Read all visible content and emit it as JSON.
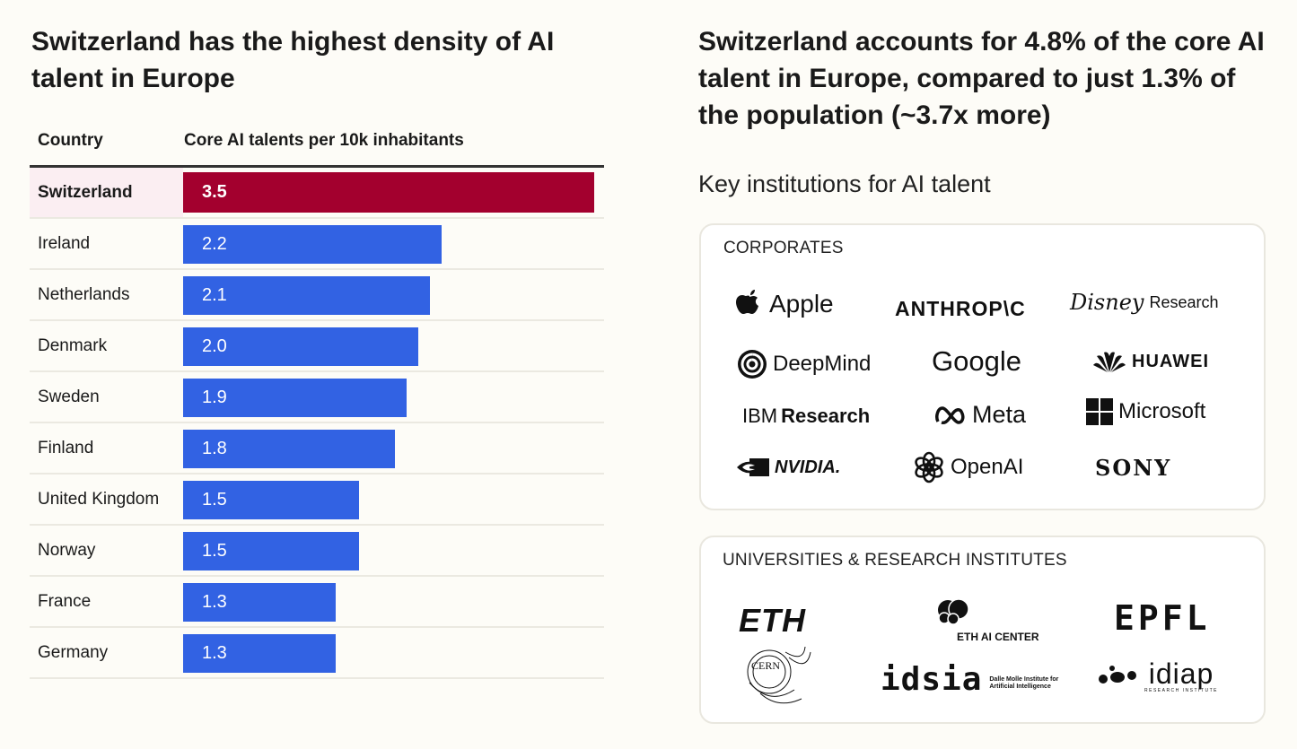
{
  "left_title": "Switzerland has the highest density of AI talent in Europe",
  "right_title": "Switzerland accounts for 4.8% of the core AI talent in Europe, compared to just 1.3% of the population (~3.7x more)",
  "table": {
    "col_country": "Country",
    "col_value": "Core AI talents per 10k inhabitants"
  },
  "colors": {
    "highlight": "#a3002e",
    "bar": "#3262e3",
    "highlight_row": "#fbeef2"
  },
  "chart_data": {
    "type": "bar",
    "orientation": "horizontal",
    "title": "Switzerland has the highest density of AI talent in Europe",
    "xlabel": "Core AI talents per 10k inhabitants",
    "ylabel": "Country",
    "xlim": [
      0,
      3.5
    ],
    "categories": [
      "Switzerland",
      "Ireland",
      "Netherlands",
      "Denmark",
      "Sweden",
      "Finland",
      "United Kingdom",
      "Norway",
      "France",
      "Germany"
    ],
    "values": [
      3.5,
      2.2,
      2.1,
      2.0,
      1.9,
      1.8,
      1.5,
      1.5,
      1.3,
      1.3
    ],
    "labels": [
      "3.5",
      "2.2",
      "2.1",
      "2.0",
      "1.9",
      "1.8",
      "1.5",
      "1.5",
      "1.3",
      "1.3"
    ],
    "highlight": "Switzerland"
  },
  "institutions": {
    "title": "Key institutions for AI talent",
    "corporates_label": "CORPORATES",
    "corporates": [
      "Apple",
      "ANTHROP\\C",
      "Research",
      "DeepMind",
      "Google",
      "HUAWEI",
      "IBM",
      "Research",
      "Meta",
      "Microsoft",
      "NVIDIA.",
      "OpenAI",
      "SONY"
    ],
    "disney_text": "Disney",
    "universities_label": "UNIVERSITIES & RESEARCH INSTITUTES",
    "eth": "ETH",
    "eth_ai_center": "ETH AI CENTER",
    "epfl": "EPFL",
    "cern": "CERN",
    "idsia": "idsia",
    "idsia_sub1": "Dalle Molle Institute for",
    "idsia_sub2": "Artificial Intelligence",
    "idiap": "idiap",
    "idiap_sub": "RESEARCH INSTITUTE"
  }
}
